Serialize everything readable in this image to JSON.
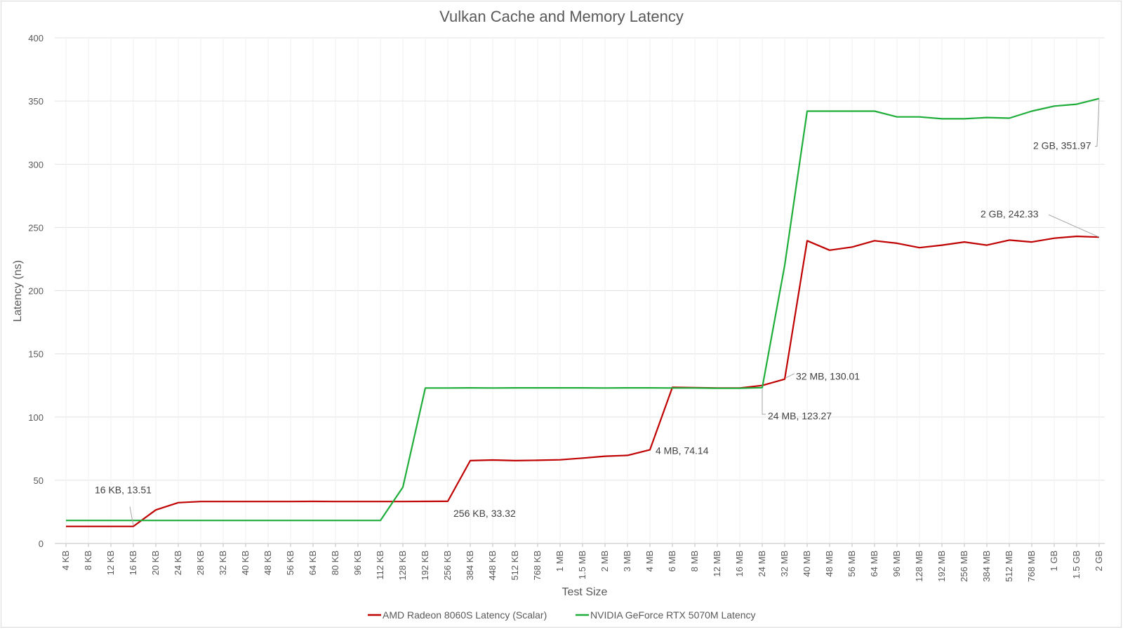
{
  "chart_data": {
    "type": "line",
    "title": "Vulkan Cache and Memory Latency",
    "xlabel": "Test Size",
    "ylabel": "Latency (ns)",
    "ylim": [
      0,
      400
    ],
    "yticks": [
      0,
      50,
      100,
      150,
      200,
      250,
      300,
      350,
      400
    ],
    "grid": true,
    "legend": "bottom",
    "categories": [
      "4 KB",
      "8 KB",
      "12 KB",
      "16 KB",
      "20 KB",
      "24 KB",
      "28 KB",
      "32 KB",
      "40 KB",
      "48 KB",
      "56 KB",
      "64 KB",
      "80 KB",
      "96 KB",
      "112 KB",
      "128 KB",
      "192 KB",
      "256 KB",
      "384 KB",
      "448 KB",
      "512 KB",
      "768 KB",
      "1 MB",
      "1.5 MB",
      "2 MB",
      "3 MB",
      "4 MB",
      "6 MB",
      "8 MB",
      "12 MB",
      "16 MB",
      "24 MB",
      "32 MB",
      "40 MB",
      "48 MB",
      "56 MB",
      "64 MB",
      "96 MB",
      "128 MB",
      "192 MB",
      "256 MB",
      "384 MB",
      "512 MB",
      "768 MB",
      "1 GB",
      "1.5 GB",
      "2 GB"
    ],
    "series": [
      {
        "name": "AMD Radeon 8060S Latency (Scalar)",
        "color": "#c00000",
        "values": [
          13.5,
          13.5,
          13.5,
          13.51,
          26.5,
          32.3,
          33.2,
          33.2,
          33.2,
          33.2,
          33.2,
          33.3,
          33.2,
          33.2,
          33.2,
          33.2,
          33.3,
          33.32,
          65.5,
          66.0,
          65.5,
          65.8,
          66.2,
          67.5,
          69.0,
          69.7,
          74.14,
          123.5,
          123.3,
          123.0,
          123.0,
          125.0,
          130.01,
          239.5,
          232.0,
          234.5,
          239.5,
          237.5,
          234.0,
          236.0,
          238.5,
          236.0,
          240.0,
          238.5,
          241.5,
          243.0,
          242.33
        ]
      },
      {
        "name": "NVIDIA GeForce RTX 5070M Latency",
        "color": "#1fad3a",
        "values": [
          18.2,
          18.2,
          18.2,
          18.2,
          18.2,
          18.2,
          18.2,
          18.2,
          18.2,
          18.2,
          18.2,
          18.2,
          18.2,
          18.2,
          18.2,
          44.5,
          123.0,
          123.0,
          123.1,
          123.0,
          123.1,
          123.1,
          123.1,
          123.1,
          123.0,
          123.1,
          123.1,
          123.0,
          123.0,
          122.8,
          122.8,
          123.27,
          220.0,
          342.0,
          342.0,
          342.0,
          342.0,
          337.5,
          337.5,
          336.0,
          336.0,
          337.0,
          336.5,
          342.0,
          346.0,
          347.5,
          351.97
        ]
      }
    ],
    "annotations": [
      {
        "series": 0,
        "index": 3,
        "text": "16 KB, 13.51"
      },
      {
        "series": 0,
        "index": 17,
        "text": "256 KB, 33.32"
      },
      {
        "series": 0,
        "index": 26,
        "text": "4 MB, 74.14"
      },
      {
        "series": 0,
        "index": 32,
        "text": "32 MB, 130.01"
      },
      {
        "series": 1,
        "index": 31,
        "text": "24 MB, 123.27"
      },
      {
        "series": 0,
        "index": 46,
        "text": "2 GB, 242.33"
      },
      {
        "series": 1,
        "index": 46,
        "text": "2 GB, 351.97"
      }
    ]
  }
}
